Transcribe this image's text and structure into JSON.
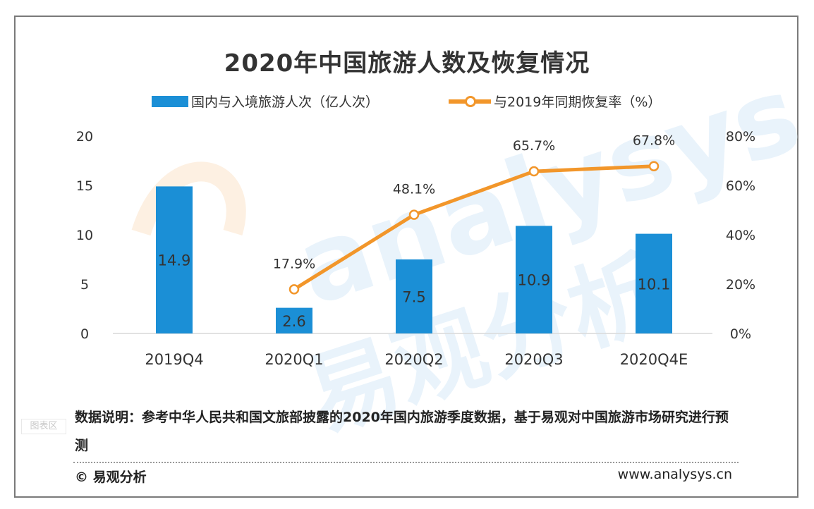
{
  "title": "2020年中国旅游人数及恢复情况",
  "legend": {
    "bar_label": "国内与入境旅游人次（亿人次）",
    "line_label": "与2019年同期恢复率（%）"
  },
  "chart_data": {
    "type": "bar",
    "title": "2020年中国旅游人数及恢复情况",
    "categories": [
      "2019Q4",
      "2020Q1",
      "2020Q2",
      "2020Q3",
      "2020Q4E"
    ],
    "series": [
      {
        "name": "国内与入境旅游人次（亿人次）",
        "type": "bar",
        "axis": "left",
        "values": [
          14.9,
          2.6,
          7.5,
          10.9,
          10.1
        ],
        "labels": [
          "14.9",
          "2.6",
          "7.5",
          "10.9",
          "10.1"
        ]
      },
      {
        "name": "与2019年同期恢复率（%）",
        "type": "line",
        "axis": "right",
        "values": [
          null,
          17.9,
          48.1,
          65.7,
          67.8
        ],
        "labels": [
          "",
          "17.9%",
          "48.1%",
          "65.7%",
          "67.8%"
        ]
      }
    ],
    "left_axis": {
      "ylim": [
        0,
        20
      ],
      "ticks": [
        "0",
        "5",
        "10",
        "15",
        "20"
      ]
    },
    "right_axis": {
      "ylim": [
        0,
        80
      ],
      "ticks": [
        "0%",
        "20%",
        "40%",
        "60%",
        "80%"
      ]
    },
    "grid": false,
    "legend_position": "top"
  },
  "colors": {
    "bar": "#1b8fd6",
    "line": "#f2962a",
    "watermark": "#e9f3fb"
  },
  "watermark": {
    "text_en": "analysys",
    "text_cn": "易观分析",
    "tag": "图表区"
  },
  "note": "数据说明：参考中华人民共和国文旅部披露的2020年国内旅游季度数据，基于易观对中国旅游市场研究进行预测",
  "footer": {
    "copyright": "© 易观分析",
    "website": "www.analysys.cn"
  }
}
